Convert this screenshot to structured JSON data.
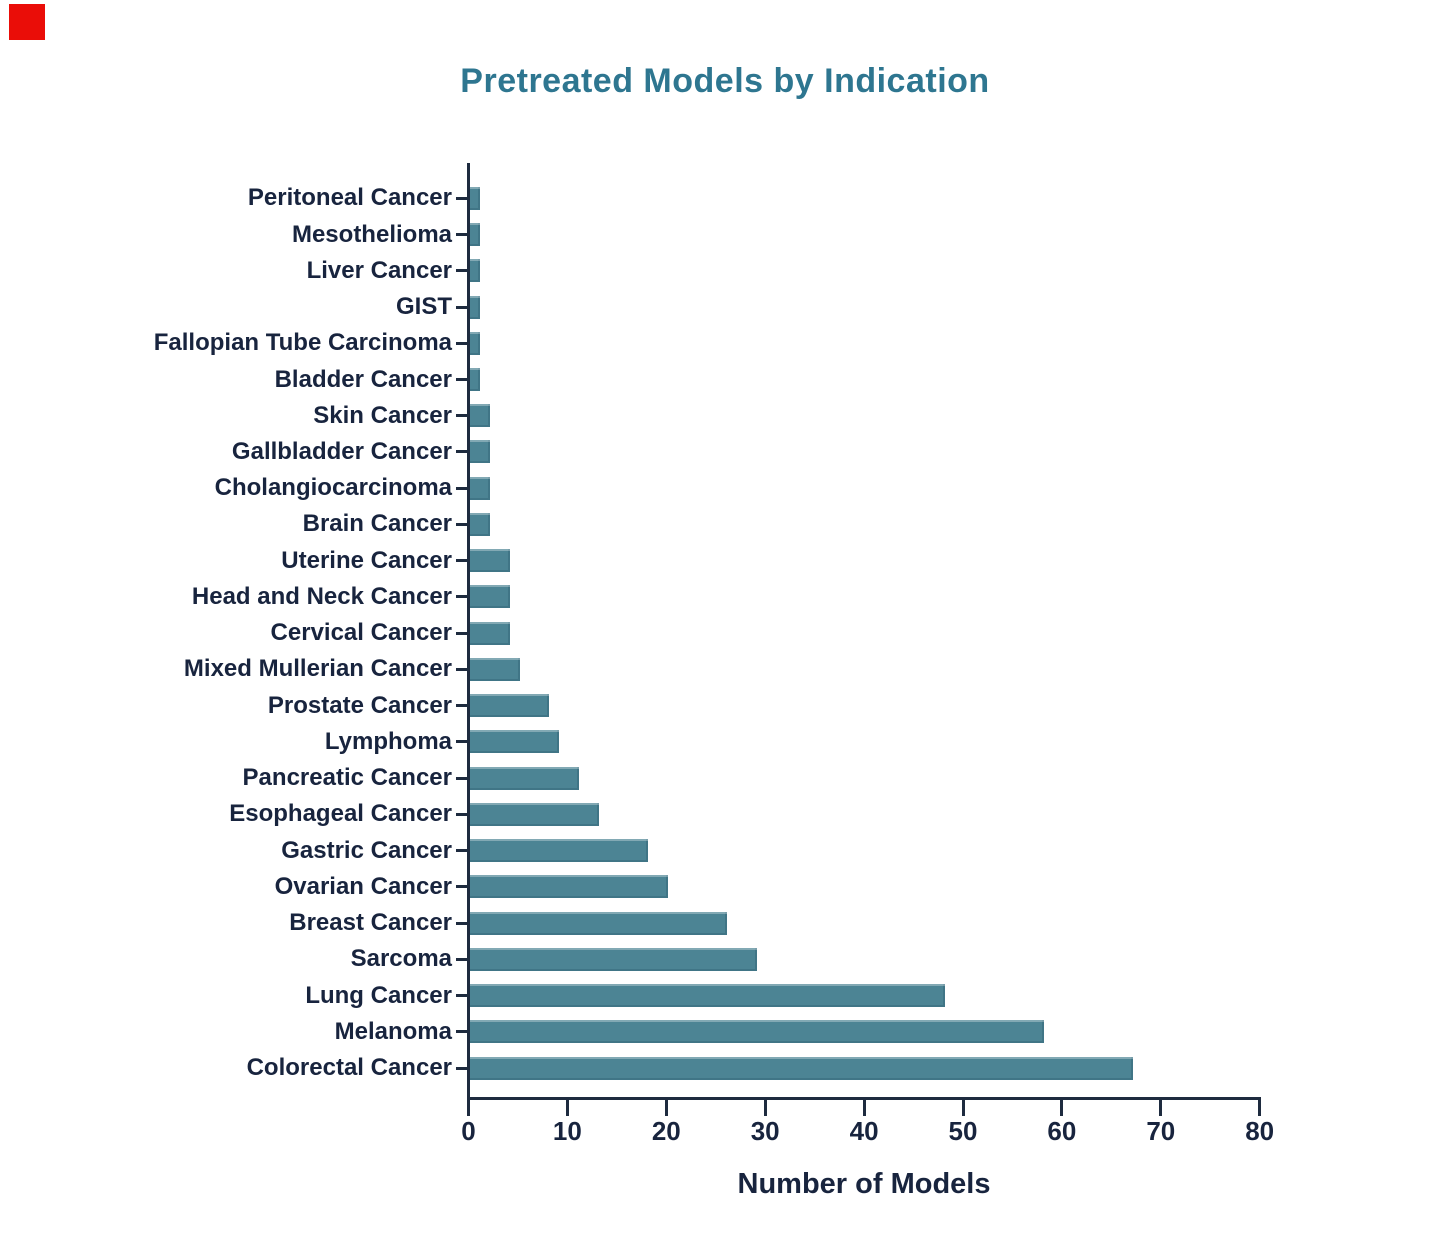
{
  "overlay": {
    "click_marker_color": "#ea0d08"
  },
  "chart_data": {
    "type": "bar",
    "orientation": "horizontal",
    "title": "Pretreated Models by Indication",
    "xlabel": "Number of Models",
    "ylabel": "",
    "categories": [
      "Peritoneal Cancer",
      "Mesothelioma",
      "Liver Cancer",
      "GIST",
      "Fallopian Tube Carcinoma",
      "Bladder Cancer",
      "Skin Cancer",
      "Gallbladder Cancer",
      "Cholangiocarcinoma",
      "Brain Cancer",
      "Uterine Cancer",
      "Head and Neck Cancer",
      "Cervical Cancer",
      "Mixed Mullerian Cancer",
      "Prostate Cancer",
      "Lymphoma",
      "Pancreatic Cancer",
      "Esophageal Cancer",
      "Gastric Cancer",
      "Ovarian Cancer",
      "Breast Cancer",
      "Sarcoma",
      "Lung Cancer",
      "Melanoma",
      "Colorectal Cancer"
    ],
    "values": [
      1,
      1,
      1,
      1,
      1,
      1,
      2,
      2,
      2,
      2,
      4,
      4,
      4,
      5,
      8,
      9,
      11,
      13,
      18,
      20,
      26,
      29,
      48,
      58,
      67
    ],
    "xlim": [
      0,
      80
    ],
    "xticks": [
      0,
      10,
      20,
      30,
      40,
      50,
      60,
      70,
      80
    ],
    "grid": false,
    "legend_position": "none",
    "colors": {
      "title": "#2e7690",
      "bar_fill": "#4c8494",
      "axis": "#1e2b3f",
      "tick_label": "#18243e"
    }
  }
}
